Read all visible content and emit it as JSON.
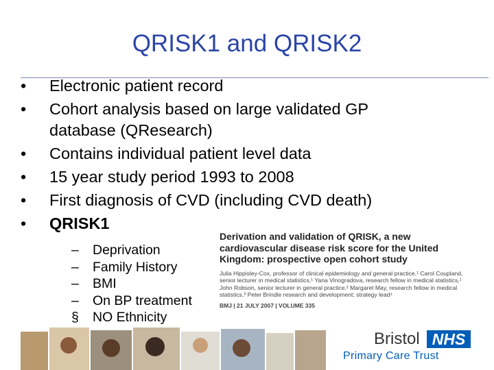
{
  "slide": {
    "title": "QRISK1 and QRISK2",
    "bullets": [
      {
        "marker": "•",
        "lines": [
          "Electronic patient record"
        ]
      },
      {
        "marker": "•",
        "lines": [
          "Cohort analysis based on large validated GP",
          "database (QResearch)"
        ]
      },
      {
        "marker": "•",
        "lines": [
          "Contains individual patient level data"
        ]
      },
      {
        "marker": "•",
        "lines": [
          "15 year study period 1993 to 2008"
        ]
      },
      {
        "marker": "•",
        "lines": [
          "First diagnosis of CVD (including CVD death)"
        ]
      },
      {
        "marker": "•",
        "lines": [
          "QRISK1"
        ]
      }
    ],
    "sub_bullets": [
      {
        "marker": "–",
        "text": "Deprivation"
      },
      {
        "marker": "–",
        "text": "Family History"
      },
      {
        "marker": "–",
        "text": "BMI"
      },
      {
        "marker": "–",
        "text": "On BP treatment"
      },
      {
        "marker": "§",
        "text": "NO Ethnicity"
      }
    ],
    "paper": {
      "title": "Derivation and validation of QRISK, a new cardiovascular disease risk score for the United Kingdom: prospective open cohort study",
      "authors": "Julia Hippisley-Cox, professor of clinical epidemiology and general practice,¹ Carol Coupland, senior lecturer in medical statistics,¹ Yana Vinogradova, research fellow in medical statistics,¹ John Robson, senior lecturer in general practice,² Margaret May, research fellow in medical statistics,³ Peter Brindle research and development; strategy lead⁴",
      "citation": "BMJ | 21 JULY 2007 | VOLUME 335"
    },
    "logo": {
      "place": "Bristol",
      "badge": "NHS",
      "organisation": "Primary Care Trust"
    }
  }
}
